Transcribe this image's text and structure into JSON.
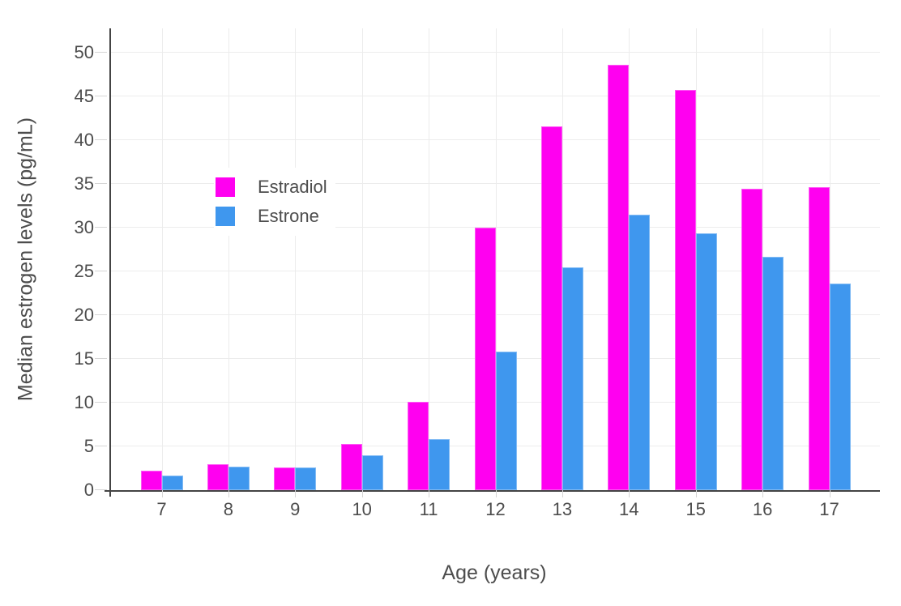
{
  "chart_data": {
    "type": "bar",
    "title": "",
    "xlabel": "Age (years)",
    "ylabel": "Median estrogen levels (pg/mL)",
    "categories": [
      "7",
      "8",
      "9",
      "10",
      "11",
      "12",
      "13",
      "14",
      "15",
      "16",
      "17"
    ],
    "series": [
      {
        "name": "Estradiol",
        "color": "#ff00f0",
        "values": [
          2.2,
          3.0,
          2.6,
          5.3,
          10.1,
          30.0,
          41.6,
          48.6,
          45.8,
          34.5,
          34.6
        ]
      },
      {
        "name": "Estrone",
        "color": "#3f97ee",
        "values": [
          1.7,
          2.7,
          2.6,
          4.0,
          5.8,
          15.8,
          25.5,
          31.5,
          29.4,
          26.7,
          23.6
        ]
      }
    ],
    "yticks": [
      0,
      5,
      10,
      15,
      20,
      25,
      30,
      35,
      40,
      45,
      50
    ],
    "ylim": [
      0,
      52.8
    ],
    "grid": true,
    "legend_position": "inside-top-left"
  },
  "colors": {
    "estradiol": "#ff00f0",
    "estrone": "#3f97ee",
    "gridline": "#ececec",
    "axis_line": "#444444",
    "tick_mark": "#d6d6d6",
    "text": "#4d4d4d",
    "background": "#ffffff"
  }
}
